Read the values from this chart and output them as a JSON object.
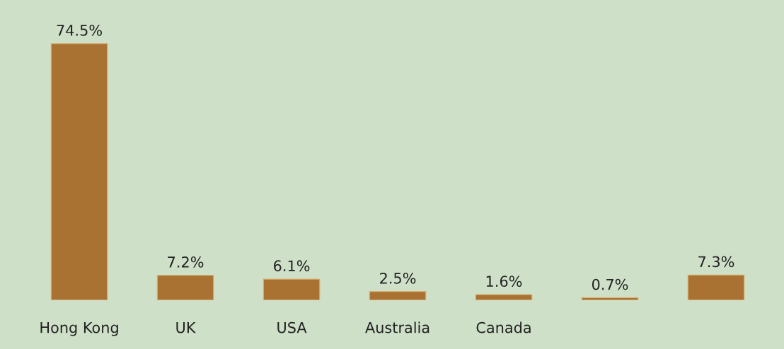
{
  "chart_data": {
    "type": "bar",
    "categories": [
      "Hong Kong",
      "UK",
      "USA",
      "Australia",
      "Canada",
      null,
      null
    ],
    "values": [
      74.5,
      7.2,
      6.1,
      2.5,
      1.6,
      0.7,
      7.3
    ],
    "value_labels": [
      "74.5%",
      "7.2%",
      "6.1%",
      "2.5%",
      "1.6%",
      "0.7%",
      "7.3%"
    ],
    "color": "#a97232",
    "grid": false,
    "legend": false
  }
}
